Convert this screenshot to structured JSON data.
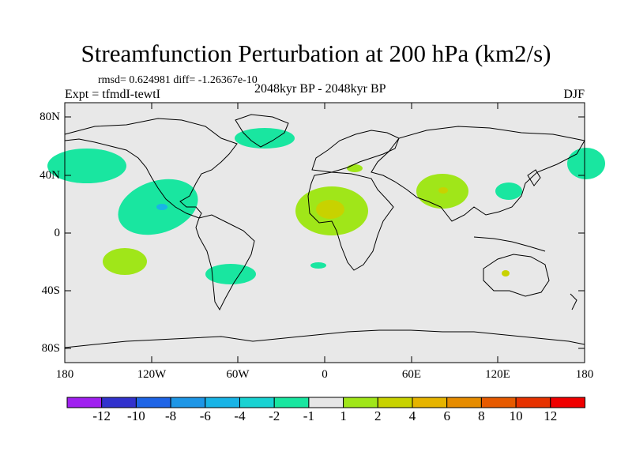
{
  "title": "Streamfunction Perturbation at 200 hPa (km2/s)",
  "stats_line": "rmsd= 0.624981 diff= -1.26367e-10",
  "experiment": "Expt = tfmdI-tewtI",
  "period": "2048kyr BP - 2048kyr BP",
  "season": "DJF",
  "map": {
    "lat_labels": [
      "80N",
      "40N",
      "0",
      "40S",
      "80S"
    ],
    "lon_labels": [
      "180",
      "120W",
      "60W",
      "0",
      "60E",
      "120E",
      "180"
    ],
    "background_color": "#e8e8e8"
  },
  "colorbar": {
    "labels": [
      "-12",
      "-10",
      "-8",
      "-6",
      "-4",
      "-2",
      "-1",
      "1",
      "2",
      "4",
      "6",
      "8",
      "10",
      "12"
    ],
    "colors": [
      "#a020f0",
      "#3232cd",
      "#1e64e6",
      "#1e96e6",
      "#19b4e6",
      "#19d2d2",
      "#19e6a0",
      "#e6e6e6",
      "#a0e619",
      "#c8d200",
      "#e6b400",
      "#e68c00",
      "#e65a00",
      "#e63200",
      "#f00000"
    ]
  }
}
